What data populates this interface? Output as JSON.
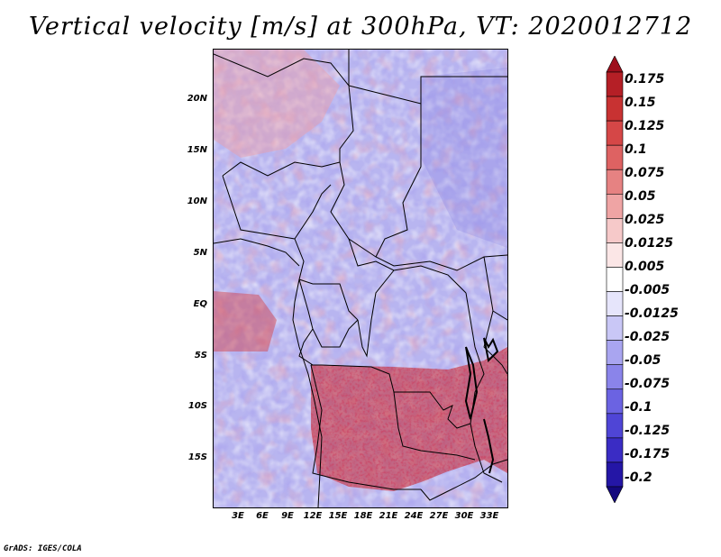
{
  "title": "Vertical velocity [m/s] at 300hPa, VT: 2020012712",
  "credit": "GrADS: IGES/COLA",
  "map": {
    "variable": "Vertical velocity",
    "units": "m/s",
    "level": "300hPa",
    "valid_time": "2020012712",
    "lat_range": [
      -20,
      25
    ],
    "lon_range": [
      0,
      36
    ],
    "lat_labels": [
      {
        "lat": 20,
        "text": "20N"
      },
      {
        "lat": 15,
        "text": "15N"
      },
      {
        "lat": 10,
        "text": "10N"
      },
      {
        "lat": 5,
        "text": "5N"
      },
      {
        "lat": 0,
        "text": "EQ"
      },
      {
        "lat": -5,
        "text": "5S"
      },
      {
        "lat": -10,
        "text": "10S"
      },
      {
        "lat": -15,
        "text": "15S"
      }
    ],
    "lon_labels": [
      {
        "lon": 3,
        "text": "3E"
      },
      {
        "lon": 6,
        "text": "6E"
      },
      {
        "lon": 9,
        "text": "9E"
      },
      {
        "lon": 12,
        "text": "12E"
      },
      {
        "lon": 15,
        "text": "15E"
      },
      {
        "lon": 18,
        "text": "18E"
      },
      {
        "lon": 21,
        "text": "21E"
      },
      {
        "lon": 24,
        "text": "24E"
      },
      {
        "lon": 27,
        "text": "27E"
      },
      {
        "lon": 30,
        "text": "30E"
      },
      {
        "lon": 33,
        "text": "33E"
      }
    ],
    "colorbar": {
      "labels": [
        "0.175",
        "0.15",
        "0.125",
        "0.1",
        "0.075",
        "0.05",
        "0.025",
        "0.0125",
        "0.005",
        "-0.005",
        "-0.0125",
        "-0.025",
        "-0.05",
        "-0.075",
        "-0.1",
        "-0.125",
        "-0.175",
        "-0.2"
      ],
      "colors": [
        "#9e0f1c",
        "#b51f26",
        "#c83232",
        "#d54747",
        "#de6262",
        "#e68282",
        "#efa4a4",
        "#f6c9c9",
        "#fbe6e6",
        "#ffffff",
        "#e6e5fb",
        "#c9c7f6",
        "#a9a5f0",
        "#8a84ea",
        "#6b63e2",
        "#4f45d6",
        "#3a2cc4",
        "#2416a6",
        "#14087e"
      ]
    }
  }
}
